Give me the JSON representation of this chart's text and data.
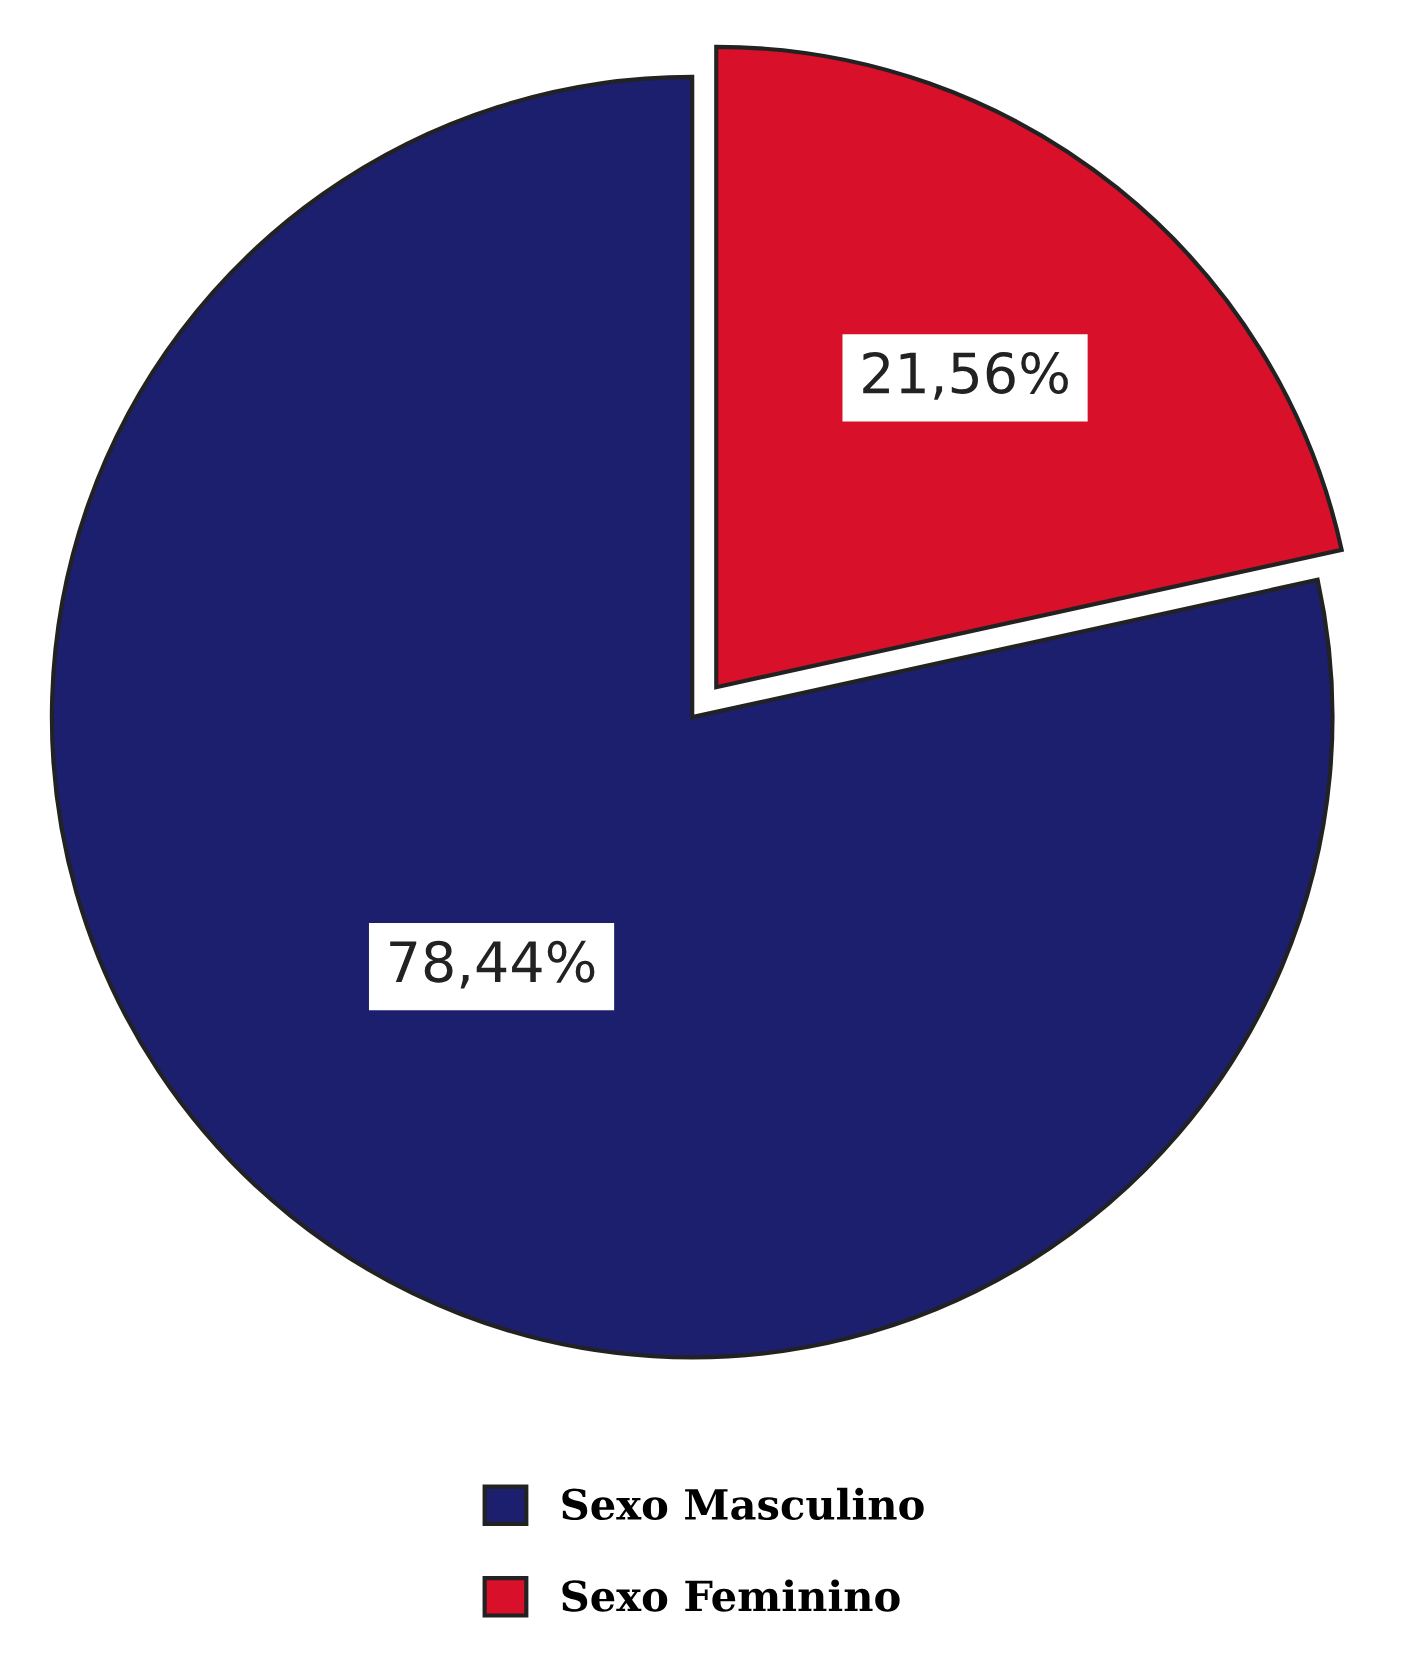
{
  "chart_data": {
    "type": "pie",
    "categories": [
      "Sexo Masculino",
      "Sexo Feminino"
    ],
    "values": [
      78.44,
      21.56
    ],
    "colors": [
      "#1c1f6e",
      "#d8102a"
    ],
    "value_labels": [
      "78,44%",
      "21,56%"
    ],
    "legend": "bottom"
  }
}
